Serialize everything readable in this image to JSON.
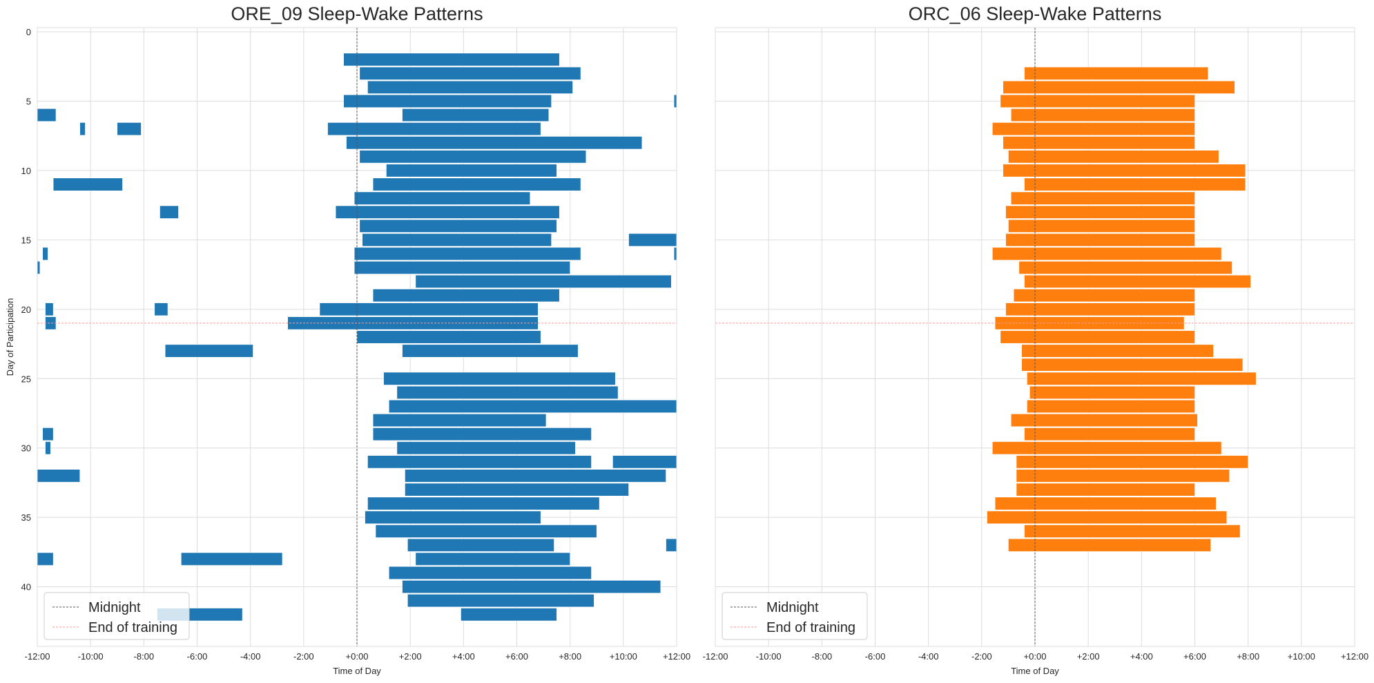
{
  "chart_data": [
    {
      "type": "bar",
      "subtype": "horizontal-broken-bar",
      "title": "ORE_09 Sleep-Wake Patterns",
      "xlabel": "Time of Day",
      "ylabel": "Day of Participation",
      "xlim": [
        -12,
        12
      ],
      "ylim": [
        44.3,
        -0.3
      ],
      "xticks": [
        "-12:00",
        "-10:00",
        "-8:00",
        "-6:00",
        "-4:00",
        "-2:00",
        "+0:00",
        "+2:00",
        "+4:00",
        "+6:00",
        "+8:00",
        "+10:00",
        "+12:00"
      ],
      "yticks": [
        0,
        5,
        10,
        15,
        20,
        25,
        30,
        35,
        40
      ],
      "grid": true,
      "midline_x": 0,
      "end_training_day": 21,
      "legend_position": "lower-left",
      "bar_color": "#1f77b4",
      "sleep_segments": [
        {
          "day": 2,
          "ranges": [
            [
              -0.5,
              7.6
            ]
          ]
        },
        {
          "day": 3,
          "ranges": [
            [
              0.1,
              8.4
            ]
          ]
        },
        {
          "day": 4,
          "ranges": [
            [
              0.4,
              8.1
            ]
          ]
        },
        {
          "day": 5,
          "ranges": [
            [
              -0.5,
              7.3
            ],
            [
              11.9,
              12.0
            ]
          ]
        },
        {
          "day": 6,
          "ranges": [
            [
              -12.0,
              -11.3
            ],
            [
              1.7,
              7.2
            ]
          ]
        },
        {
          "day": 7,
          "ranges": [
            [
              -10.4,
              -10.2
            ],
            [
              -9.0,
              -8.1
            ],
            [
              -1.1,
              6.9
            ]
          ]
        },
        {
          "day": 8,
          "ranges": [
            [
              -0.4,
              10.7
            ]
          ]
        },
        {
          "day": 9,
          "ranges": [
            [
              0.1,
              8.6
            ]
          ]
        },
        {
          "day": 10,
          "ranges": [
            [
              1.1,
              7.5
            ]
          ]
        },
        {
          "day": 11,
          "ranges": [
            [
              -11.4,
              -8.8
            ],
            [
              0.6,
              8.4
            ]
          ]
        },
        {
          "day": 12,
          "ranges": [
            [
              -0.1,
              6.5
            ]
          ]
        },
        {
          "day": 13,
          "ranges": [
            [
              -7.4,
              -6.7
            ],
            [
              -0.8,
              7.6
            ]
          ]
        },
        {
          "day": 14,
          "ranges": [
            [
              0.1,
              7.5
            ]
          ]
        },
        {
          "day": 15,
          "ranges": [
            [
              0.2,
              7.3
            ],
            [
              10.2,
              12.0
            ]
          ]
        },
        {
          "day": 16,
          "ranges": [
            [
              -11.8,
              -11.6
            ],
            [
              -0.1,
              8.4
            ],
            [
              11.9,
              12.0
            ]
          ]
        },
        {
          "day": 17,
          "ranges": [
            [
              -12.0,
              -11.9
            ],
            [
              -0.1,
              8.0
            ]
          ]
        },
        {
          "day": 18,
          "ranges": [
            [
              2.2,
              11.8
            ]
          ]
        },
        {
          "day": 19,
          "ranges": [
            [
              0.6,
              7.6
            ]
          ]
        },
        {
          "day": 20,
          "ranges": [
            [
              -11.7,
              -11.4
            ],
            [
              -7.6,
              -7.1
            ],
            [
              -1.4,
              6.8
            ]
          ]
        },
        {
          "day": 21,
          "ranges": [
            [
              -11.7,
              -11.3
            ],
            [
              -2.6,
              6.8
            ]
          ]
        },
        {
          "day": 22,
          "ranges": [
            [
              0.0,
              6.9
            ]
          ]
        },
        {
          "day": 23,
          "ranges": [
            [
              -7.2,
              -3.9
            ],
            [
              1.7,
              8.3
            ]
          ]
        },
        {
          "day": 25,
          "ranges": [
            [
              1.0,
              9.7
            ]
          ]
        },
        {
          "day": 26,
          "ranges": [
            [
              1.5,
              9.8
            ]
          ]
        },
        {
          "day": 27,
          "ranges": [
            [
              1.2,
              12.0
            ]
          ]
        },
        {
          "day": 28,
          "ranges": [
            [
              0.6,
              7.1
            ]
          ]
        },
        {
          "day": 29,
          "ranges": [
            [
              -11.8,
              -11.4
            ],
            [
              0.6,
              8.8
            ]
          ]
        },
        {
          "day": 30,
          "ranges": [
            [
              -11.7,
              -11.5
            ],
            [
              1.5,
              8.2
            ]
          ]
        },
        {
          "day": 31,
          "ranges": [
            [
              0.4,
              8.8
            ],
            [
              9.6,
              12.0
            ]
          ]
        },
        {
          "day": 32,
          "ranges": [
            [
              -12.0,
              -10.4
            ],
            [
              1.8,
              11.6
            ]
          ]
        },
        {
          "day": 33,
          "ranges": [
            [
              1.8,
              10.2
            ]
          ]
        },
        {
          "day": 34,
          "ranges": [
            [
              0.4,
              9.1
            ]
          ]
        },
        {
          "day": 35,
          "ranges": [
            [
              0.3,
              6.9
            ]
          ]
        },
        {
          "day": 36,
          "ranges": [
            [
              0.7,
              9.0
            ]
          ]
        },
        {
          "day": 37,
          "ranges": [
            [
              1.9,
              7.4
            ],
            [
              11.6,
              12.0
            ]
          ]
        },
        {
          "day": 38,
          "ranges": [
            [
              -12.0,
              -11.4
            ],
            [
              -6.6,
              -2.8
            ],
            [
              2.2,
              8.0
            ]
          ]
        },
        {
          "day": 39,
          "ranges": [
            [
              1.2,
              8.8
            ]
          ]
        },
        {
          "day": 40,
          "ranges": [
            [
              1.7,
              11.4
            ]
          ]
        },
        {
          "day": 41,
          "ranges": [
            [
              1.9,
              8.9
            ]
          ]
        },
        {
          "day": 42,
          "ranges": [
            [
              -7.5,
              -4.3
            ],
            [
              3.9,
              7.5
            ]
          ]
        }
      ]
    },
    {
      "type": "bar",
      "subtype": "horizontal-broken-bar",
      "title": "ORC_06 Sleep-Wake Patterns",
      "xlabel": "Time of Day",
      "ylabel": "",
      "xlim": [
        -12,
        12
      ],
      "ylim": [
        44.3,
        -0.3
      ],
      "xticks": [
        "-12:00",
        "-10:00",
        "-8:00",
        "-6:00",
        "-4:00",
        "-2:00",
        "+0:00",
        "+2:00",
        "+4:00",
        "+6:00",
        "+8:00",
        "+10:00",
        "+12:00"
      ],
      "yticks": [
        0,
        5,
        10,
        15,
        20,
        25,
        30,
        35,
        40
      ],
      "grid": true,
      "midline_x": 0,
      "end_training_day": 21,
      "legend_position": "lower-left",
      "bar_color": "#ff7f0e",
      "sleep_segments": [
        {
          "day": 3,
          "ranges": [
            [
              -0.4,
              6.5
            ]
          ]
        },
        {
          "day": 4,
          "ranges": [
            [
              -1.2,
              7.5
            ]
          ]
        },
        {
          "day": 5,
          "ranges": [
            [
              -1.3,
              6.0
            ]
          ]
        },
        {
          "day": 6,
          "ranges": [
            [
              -0.9,
              6.0
            ]
          ]
        },
        {
          "day": 7,
          "ranges": [
            [
              -1.6,
              6.0
            ]
          ]
        },
        {
          "day": 8,
          "ranges": [
            [
              -1.2,
              6.0
            ]
          ]
        },
        {
          "day": 9,
          "ranges": [
            [
              -1.0,
              6.9
            ]
          ]
        },
        {
          "day": 10,
          "ranges": [
            [
              -1.2,
              7.9
            ]
          ]
        },
        {
          "day": 11,
          "ranges": [
            [
              -0.4,
              7.9
            ]
          ]
        },
        {
          "day": 12,
          "ranges": [
            [
              -0.9,
              6.0
            ]
          ]
        },
        {
          "day": 13,
          "ranges": [
            [
              -1.1,
              6.0
            ]
          ]
        },
        {
          "day": 14,
          "ranges": [
            [
              -1.0,
              6.0
            ]
          ]
        },
        {
          "day": 15,
          "ranges": [
            [
              -1.1,
              6.0
            ]
          ]
        },
        {
          "day": 16,
          "ranges": [
            [
              -1.6,
              7.0
            ]
          ]
        },
        {
          "day": 17,
          "ranges": [
            [
              -0.6,
              7.4
            ]
          ]
        },
        {
          "day": 18,
          "ranges": [
            [
              -0.4,
              8.1
            ]
          ]
        },
        {
          "day": 19,
          "ranges": [
            [
              -0.8,
              6.0
            ]
          ]
        },
        {
          "day": 20,
          "ranges": [
            [
              -1.1,
              6.0
            ]
          ]
        },
        {
          "day": 21,
          "ranges": [
            [
              -1.5,
              5.6
            ]
          ]
        },
        {
          "day": 22,
          "ranges": [
            [
              -1.3,
              6.0
            ]
          ]
        },
        {
          "day": 23,
          "ranges": [
            [
              -0.5,
              6.7
            ]
          ]
        },
        {
          "day": 24,
          "ranges": [
            [
              -0.5,
              7.8
            ]
          ]
        },
        {
          "day": 25,
          "ranges": [
            [
              -0.3,
              8.3
            ]
          ]
        },
        {
          "day": 26,
          "ranges": [
            [
              -0.2,
              6.0
            ]
          ]
        },
        {
          "day": 27,
          "ranges": [
            [
              -0.3,
              6.0
            ]
          ]
        },
        {
          "day": 28,
          "ranges": [
            [
              -0.9,
              6.1
            ]
          ]
        },
        {
          "day": 29,
          "ranges": [
            [
              -0.4,
              6.0
            ]
          ]
        },
        {
          "day": 30,
          "ranges": [
            [
              -1.6,
              7.0
            ]
          ]
        },
        {
          "day": 31,
          "ranges": [
            [
              -0.7,
              8.0
            ]
          ]
        },
        {
          "day": 32,
          "ranges": [
            [
              -0.7,
              7.3
            ]
          ]
        },
        {
          "day": 33,
          "ranges": [
            [
              -0.7,
              6.0
            ]
          ]
        },
        {
          "day": 34,
          "ranges": [
            [
              -1.5,
              6.8
            ]
          ]
        },
        {
          "day": 35,
          "ranges": [
            [
              -1.8,
              7.2
            ]
          ]
        },
        {
          "day": 36,
          "ranges": [
            [
              -0.4,
              7.7
            ]
          ]
        },
        {
          "day": 37,
          "ranges": [
            [
              -1.0,
              6.6
            ]
          ]
        }
      ]
    }
  ],
  "legend": {
    "midnight_label": "Midnight",
    "end_training_label": "End of training"
  },
  "colors": {
    "grid": "#dcdcdc",
    "midline": "#555555",
    "end_training": "#ff9999",
    "text": "#262626"
  }
}
